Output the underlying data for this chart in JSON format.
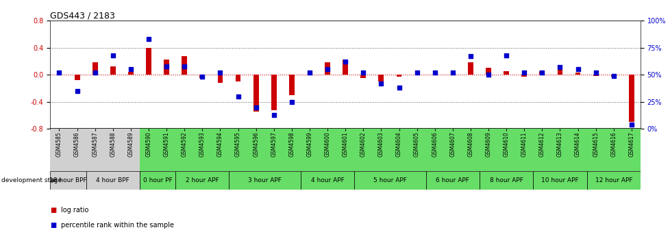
{
  "title": "GDS443 / 2183",
  "samples": [
    "GSM4585",
    "GSM4586",
    "GSM4587",
    "GSM4588",
    "GSM4589",
    "GSM4590",
    "GSM4591",
    "GSM4592",
    "GSM4593",
    "GSM4594",
    "GSM4595",
    "GSM4596",
    "GSM4597",
    "GSM4598",
    "GSM4599",
    "GSM4600",
    "GSM4601",
    "GSM4602",
    "GSM4603",
    "GSM4604",
    "GSM4605",
    "GSM4606",
    "GSM4607",
    "GSM4608",
    "GSM4609",
    "GSM4610",
    "GSM4611",
    "GSM4612",
    "GSM4613",
    "GSM4614",
    "GSM4615",
    "GSM4616",
    "GSM4617"
  ],
  "log_ratio": [
    0.02,
    -0.08,
    0.18,
    0.12,
    0.04,
    0.4,
    0.22,
    0.28,
    -0.05,
    -0.12,
    -0.1,
    -0.55,
    -0.52,
    -0.3,
    0.0,
    0.18,
    0.22,
    -0.05,
    -0.1,
    -0.03,
    0.0,
    0.0,
    0.0,
    0.18,
    0.1,
    0.05,
    -0.03,
    0.05,
    0.08,
    0.03,
    -0.02,
    -0.03,
    -0.7
  ],
  "percentile": [
    52,
    35,
    52,
    68,
    55,
    83,
    58,
    58,
    48,
    52,
    30,
    20,
    13,
    25,
    52,
    55,
    62,
    52,
    42,
    38,
    52,
    52,
    52,
    67,
    50,
    68,
    52,
    52,
    57,
    55,
    52,
    49,
    4
  ],
  "stages": [
    {
      "label": "18 hour BPF",
      "start": 0,
      "end": 1,
      "color": "#d0d0d0"
    },
    {
      "label": "4 hour BPF",
      "start": 2,
      "end": 4,
      "color": "#d0d0d0"
    },
    {
      "label": "0 hour PF",
      "start": 5,
      "end": 6,
      "color": "#66dd66"
    },
    {
      "label": "2 hour APF",
      "start": 7,
      "end": 9,
      "color": "#66dd66"
    },
    {
      "label": "3 hour APF",
      "start": 10,
      "end": 13,
      "color": "#66dd66"
    },
    {
      "label": "4 hour APF",
      "start": 14,
      "end": 16,
      "color": "#66dd66"
    },
    {
      "label": "5 hour APF",
      "start": 17,
      "end": 20,
      "color": "#66dd66"
    },
    {
      "label": "6 hour APF",
      "start": 21,
      "end": 23,
      "color": "#66dd66"
    },
    {
      "label": "8 hour APF",
      "start": 24,
      "end": 26,
      "color": "#66dd66"
    },
    {
      "label": "10 hour APF",
      "start": 27,
      "end": 29,
      "color": "#66dd66"
    },
    {
      "label": "12 hour APF",
      "start": 30,
      "end": 32,
      "color": "#66dd66"
    }
  ],
  "ylim": [
    -0.8,
    0.8
  ],
  "yticks_left": [
    -0.8,
    -0.4,
    0.0,
    0.4,
    0.8
  ],
  "yticks_right_pct": [
    0,
    25,
    50,
    75,
    100
  ],
  "yticks_right_labels": [
    "0%",
    "25%",
    "50%",
    "75%",
    "100%"
  ],
  "bar_color": "#cc0000",
  "dot_color": "#0000cc",
  "hline0_color": "#cc0000",
  "dotted_line_color": "#555555",
  "bg_color": "#ffffff",
  "title_fontsize": 9,
  "tick_fontsize": 7,
  "stage_label_fontsize": 6.5,
  "sample_fontsize": 5.5,
  "bar_width": 0.3,
  "dot_size": 14
}
